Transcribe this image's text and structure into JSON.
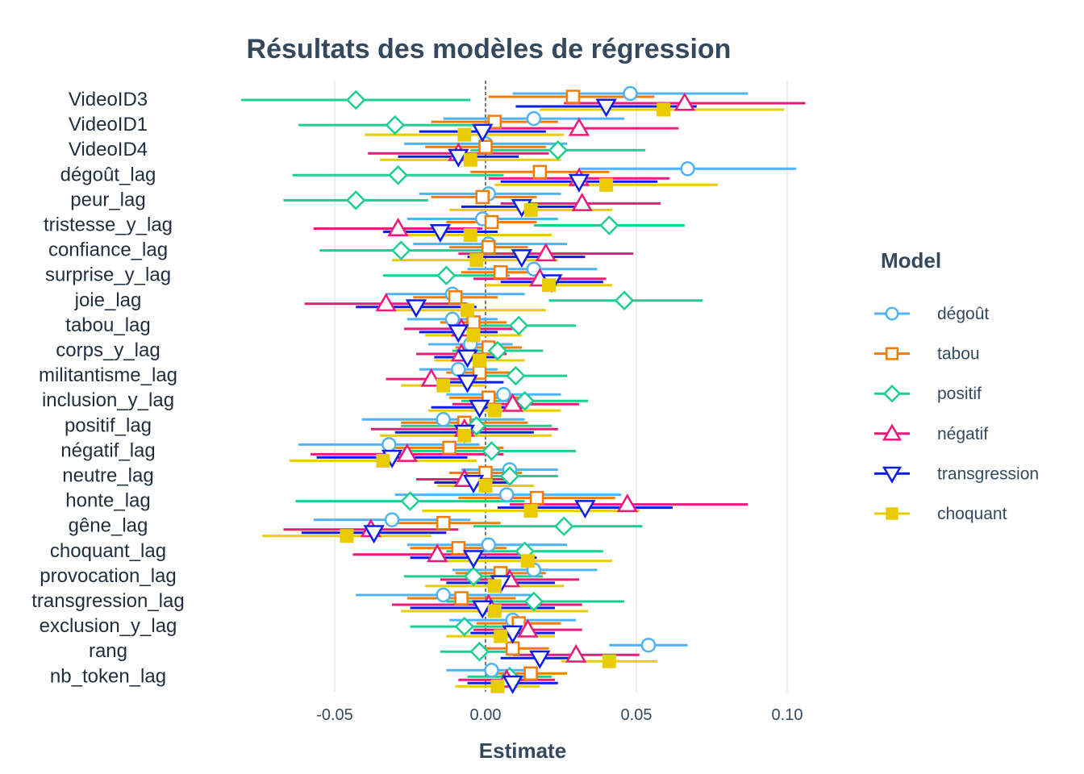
{
  "chart_data": {
    "type": "scatter",
    "title": "Résultats des modèles de régression",
    "xlabel": "Estimate",
    "ylabel": "",
    "xlim": [
      -0.085,
      0.108
    ],
    "xticks": [
      -0.05,
      0.0,
      0.05,
      0.1
    ],
    "xtick_labels": [
      "-0.05",
      "0.00",
      "0.05",
      "0.10"
    ],
    "grid": true,
    "zero_line": "dashed",
    "legend_title": "Model",
    "legend_position": "right",
    "terms": [
      "VideoID3",
      "VideoID1",
      "VideoID4",
      "dégoût_lag",
      "peur_lag",
      "tristesse_y_lag",
      "confiance_lag",
      "surprise_y_lag",
      "joie_lag",
      "tabou_lag",
      "corps_y_lag",
      "militantisme_lag",
      "inclusion_y_lag",
      "positif_lag",
      "négatif_lag",
      "neutre_lag",
      "honte_lag",
      "gêne_lag",
      "choquant_lag",
      "provocation_lag",
      "transgression_lag",
      "exclusion_y_lag",
      "rang",
      "nb_token_lag"
    ],
    "series": [
      {
        "name": "dégoût",
        "color": "#4fb3f5",
        "marker": "circle-open",
        "estimate": [
          0.048,
          0.016,
          0.0,
          0.067,
          0.001,
          -0.001,
          0.001,
          0.016,
          -0.011,
          -0.011,
          -0.005,
          -0.009,
          0.006,
          -0.014,
          -0.032,
          0.008,
          0.007,
          -0.031,
          0.001,
          0.016,
          -0.014,
          0.009,
          0.054,
          0.002
        ],
        "low": [
          0.009,
          -0.014,
          -0.027,
          0.031,
          -0.022,
          -0.026,
          -0.024,
          -0.006,
          -0.033,
          -0.026,
          -0.019,
          -0.022,
          -0.013,
          -0.041,
          -0.062,
          -0.008,
          -0.03,
          -0.057,
          -0.026,
          -0.011,
          -0.043,
          -0.012,
          0.041,
          -0.013
        ],
        "high": [
          0.087,
          0.046,
          0.027,
          0.103,
          0.025,
          0.024,
          0.027,
          0.037,
          0.013,
          0.004,
          0.009,
          0.004,
          0.025,
          0.013,
          -0.002,
          0.024,
          0.045,
          -0.005,
          0.027,
          0.037,
          0.016,
          0.03,
          0.067,
          0.017
        ]
      },
      {
        "name": "tabou",
        "color": "#f57c00",
        "marker": "square-open",
        "estimate": [
          0.029,
          0.003,
          0.0,
          0.018,
          -0.001,
          0.002,
          0.001,
          0.005,
          -0.01,
          -0.004,
          0.001,
          -0.002,
          0.001,
          -0.007,
          -0.012,
          0.0,
          0.017,
          -0.014,
          -0.009,
          0.005,
          -0.008,
          0.011,
          0.009,
          0.015
        ],
        "low": [
          0.001,
          -0.018,
          -0.02,
          -0.005,
          -0.018,
          -0.013,
          -0.012,
          -0.008,
          -0.024,
          -0.015,
          -0.01,
          -0.013,
          -0.012,
          -0.028,
          -0.03,
          -0.012,
          -0.009,
          -0.033,
          -0.025,
          -0.01,
          -0.026,
          -0.003,
          -0.003,
          0.003
        ],
        "high": [
          0.056,
          0.024,
          0.02,
          0.041,
          0.017,
          0.017,
          0.014,
          0.018,
          0.004,
          0.007,
          0.012,
          0.009,
          0.014,
          0.014,
          0.006,
          0.012,
          0.043,
          0.005,
          0.007,
          0.02,
          0.01,
          0.025,
          0.021,
          0.027
        ]
      },
      {
        "name": "positif",
        "color": "#1ccf8f",
        "marker": "diamond-open",
        "estimate": [
          -0.043,
          -0.03,
          0.024,
          -0.029,
          -0.043,
          0.041,
          -0.028,
          -0.013,
          0.046,
          0.011,
          0.004,
          0.01,
          0.013,
          -0.003,
          0.002,
          0.008,
          -0.025,
          0.026,
          0.013,
          -0.004,
          0.016,
          -0.007,
          -0.002,
          0.008
        ],
        "low": [
          -0.081,
          -0.062,
          -0.005,
          -0.064,
          -0.067,
          0.016,
          -0.055,
          -0.034,
          0.021,
          -0.008,
          -0.011,
          -0.007,
          -0.008,
          -0.028,
          -0.026,
          -0.008,
          -0.063,
          -0.004,
          -0.013,
          -0.027,
          -0.013,
          -0.025,
          -0.015,
          -0.006
        ],
        "high": [
          -0.005,
          0.002,
          0.053,
          0.006,
          -0.019,
          0.066,
          -0.001,
          0.008,
          0.072,
          0.03,
          0.019,
          0.027,
          0.034,
          0.022,
          0.03,
          0.024,
          0.013,
          0.052,
          0.039,
          0.019,
          0.046,
          0.011,
          0.011,
          0.022
        ]
      },
      {
        "name": "négatif",
        "color": "#eb1a7b",
        "marker": "triangle-up-open",
        "estimate": [
          0.066,
          0.031,
          -0.009,
          0.031,
          0.032,
          -0.029,
          0.02,
          0.018,
          -0.033,
          -0.008,
          -0.008,
          -0.018,
          0.009,
          -0.007,
          -0.026,
          -0.007,
          0.047,
          -0.038,
          -0.016,
          0.008,
          0.001,
          0.014,
          0.03,
          0.007
        ],
        "low": [
          0.026,
          -0.002,
          -0.039,
          0.001,
          0.005,
          -0.057,
          -0.009,
          -0.004,
          -0.06,
          -0.027,
          -0.023,
          -0.033,
          -0.011,
          -0.038,
          -0.058,
          -0.023,
          0.008,
          -0.067,
          -0.044,
          -0.015,
          -0.031,
          -0.004,
          0.009,
          -0.009
        ],
        "high": [
          0.106,
          0.064,
          0.021,
          0.061,
          0.058,
          -0.001,
          0.049,
          0.04,
          -0.006,
          0.011,
          0.007,
          -0.003,
          0.031,
          0.024,
          0.006,
          0.009,
          0.087,
          -0.009,
          0.012,
          0.031,
          0.032,
          0.032,
          0.051,
          0.023
        ]
      },
      {
        "name": "transgression",
        "color": "#0a1ee8",
        "marker": "triangle-down-open",
        "estimate": [
          0.04,
          -0.001,
          -0.009,
          0.031,
          0.012,
          -0.015,
          0.012,
          0.022,
          -0.023,
          -0.009,
          -0.006,
          -0.006,
          -0.002,
          -0.007,
          -0.031,
          -0.004,
          0.033,
          -0.037,
          -0.004,
          0.005,
          -0.001,
          0.009,
          0.018,
          0.009
        ],
        "low": [
          0.01,
          -0.022,
          -0.029,
          0.005,
          -0.008,
          -0.034,
          -0.006,
          0.005,
          -0.043,
          -0.022,
          -0.017,
          -0.018,
          -0.018,
          -0.03,
          -0.056,
          -0.017,
          0.004,
          -0.061,
          -0.025,
          -0.013,
          -0.025,
          -0.005,
          0.005,
          -0.006
        ],
        "high": [
          0.07,
          0.02,
          0.011,
          0.057,
          0.032,
          0.004,
          0.033,
          0.039,
          -0.003,
          0.004,
          0.005,
          0.006,
          0.014,
          0.016,
          -0.006,
          0.009,
          0.062,
          -0.013,
          0.017,
          0.023,
          0.023,
          0.023,
          0.031,
          0.024
        ]
      },
      {
        "name": "choquant",
        "color": "#e8cc00",
        "marker": "square-filled",
        "estimate": [
          0.059,
          -0.007,
          -0.005,
          0.04,
          0.015,
          -0.005,
          -0.003,
          0.021,
          -0.006,
          -0.004,
          -0.002,
          -0.014,
          0.003,
          -0.007,
          -0.034,
          0.0,
          0.015,
          -0.046,
          0.014,
          0.003,
          0.003,
          0.005,
          0.041,
          0.004
        ],
        "low": [
          0.018,
          -0.04,
          -0.035,
          0.003,
          -0.012,
          -0.032,
          -0.031,
          0.0,
          -0.032,
          -0.02,
          -0.017,
          -0.028,
          -0.019,
          -0.035,
          -0.065,
          -0.016,
          -0.021,
          -0.074,
          -0.014,
          -0.02,
          -0.028,
          -0.013,
          0.025,
          -0.01
        ],
        "high": [
          0.099,
          0.026,
          0.025,
          0.077,
          0.042,
          0.022,
          0.024,
          0.042,
          0.02,
          0.012,
          0.013,
          0.0,
          0.025,
          0.022,
          -0.003,
          0.016,
          0.051,
          -0.018,
          0.042,
          0.026,
          0.034,
          0.023,
          0.057,
          0.018
        ]
      }
    ]
  }
}
